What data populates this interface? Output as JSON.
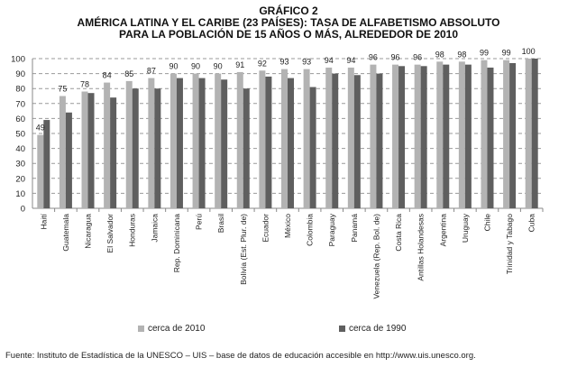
{
  "chart_data": {
    "type": "bar",
    "title_line1": "GRÁFICO 2",
    "title_line2": "AMÉRICA LATINA Y EL CARIBE (23 PAÍSES): TASA DE ALFABETISMO ABSOLUTO",
    "title_line3": "PARA LA POBLACIÓN DE 15 AÑOS O MÁS, ALREDEDOR DE 2010",
    "categories": [
      "Haití",
      "Guatemala",
      "Nicaragua",
      "El Salvador",
      "Honduras",
      "Jamaica",
      "Rep. Dominicana",
      "Perú",
      "Brasil",
      "Bolivia (Est. Plur. de)",
      "Ecuador",
      "México",
      "Colombia",
      "Paraguay",
      "Panamá",
      "Venezuela (Rep. Bol. de)",
      "Costa Rica",
      "Antillas Holandesas",
      "Argentina",
      "Uruguay",
      "Chile",
      "Trinidad y Tabago",
      "Cuba"
    ],
    "series": [
      {
        "name": "cerca de 2010",
        "color": "#b3b3b3",
        "values": [
          49,
          75,
          78,
          84,
          85,
          87,
          90,
          90,
          90,
          91,
          92,
          93,
          93,
          94,
          94,
          96,
          96,
          96,
          98,
          98,
          99,
          99,
          100
        ]
      },
      {
        "name": "cerca de 1990",
        "color": "#5f5f5f",
        "values": [
          59,
          64,
          77,
          74,
          80,
          80,
          87,
          87,
          86,
          80,
          88,
          87,
          81,
          90,
          89,
          90,
          95,
          95,
          96,
          96,
          94,
          97,
          100
        ]
      }
    ],
    "ylim": [
      0,
      100
    ],
    "yticks": [
      0,
      10,
      20,
      30,
      40,
      50,
      60,
      70,
      80,
      90,
      100
    ],
    "grid": true,
    "legend": "bottom"
  },
  "source": "Fuente: Instituto de Estadística de la UNESCO – UIS – base de datos de educación accesible en http://www.uis.unesco.org."
}
